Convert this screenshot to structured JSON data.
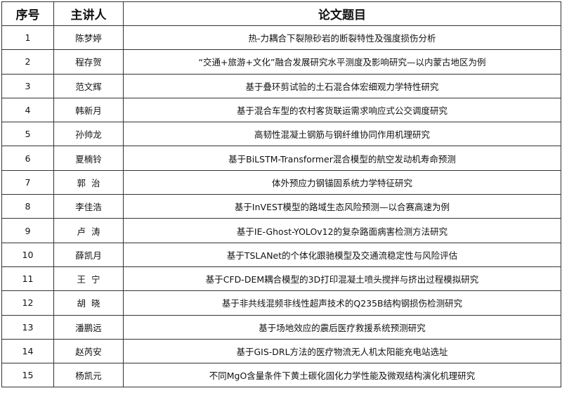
{
  "headers": [
    "序号",
    "主讲人",
    "论文题目"
  ],
  "rows": [
    {
      "no": "1",
      "speaker": "陈梦婷",
      "title": "热-力耦合下裂隙砂岩的断裂特性及强度损伤分析"
    },
    {
      "no": "2",
      "speaker": "程存贺",
      "title": "“交通+旅游+文化”融合发展研究水平测度及影响研究—以内蒙古地区为例"
    },
    {
      "no": "3",
      "speaker": "范文辉",
      "title": "基于叠环剪试验的土石混合体宏细观力学特性研究"
    },
    {
      "no": "4",
      "speaker": "韩新月",
      "title": "基于混合车型的农村客货联运需求响应式公交调度研究"
    },
    {
      "no": "5",
      "speaker": "孙帅龙",
      "title": "高韧性混凝土钢筋与钢纤维协同作用机理研究"
    },
    {
      "no": "6",
      "speaker": "夏楠铃",
      "title": "基于BiLSTM-Transformer混合模型的航空发动机寿命预测"
    },
    {
      "no": "7",
      "speaker": "郭  治",
      "title": "体外预应力钢锚固系统力学特征研究"
    },
    {
      "no": "8",
      "speaker": "李佳浩",
      "title": "基于InVEST模型的路域生态风险预测—以合赛高速为例"
    },
    {
      "no": "9",
      "speaker": "卢  涛",
      "title": "基于IE-Ghost-YOLOv12的复杂路面病害检测方法研究"
    },
    {
      "no": "10",
      "speaker": "薛凯月",
      "title": "基于TSLANet的个体化跟驰模型及交通流稳定性与风险评估"
    },
    {
      "no": "11",
      "speaker": "王  宁",
      "title": "基于CFD-DEM耦合模型的3D打印混凝土喷头搅拌与挤出过程模拟研究"
    },
    {
      "no": "12",
      "speaker": "胡  晓",
      "title": "基于非共线混频非线性超声技术的Q235B结构钢损伤检测研究"
    },
    {
      "no": "13",
      "speaker": "潘鹏远",
      "title": "基于场地效应的震后医疗救援系统预测研究"
    },
    {
      "no": "14",
      "speaker": "赵芮安",
      "title": "基于GIS-DRL方法的医疗物流无人机太阳能充电站选址"
    },
    {
      "no": "15",
      "speaker": "杨凯元",
      "title": "不同MgO含量条件下黄土碳化固化力学性能及微观结构演化机理研究"
    }
  ]
}
